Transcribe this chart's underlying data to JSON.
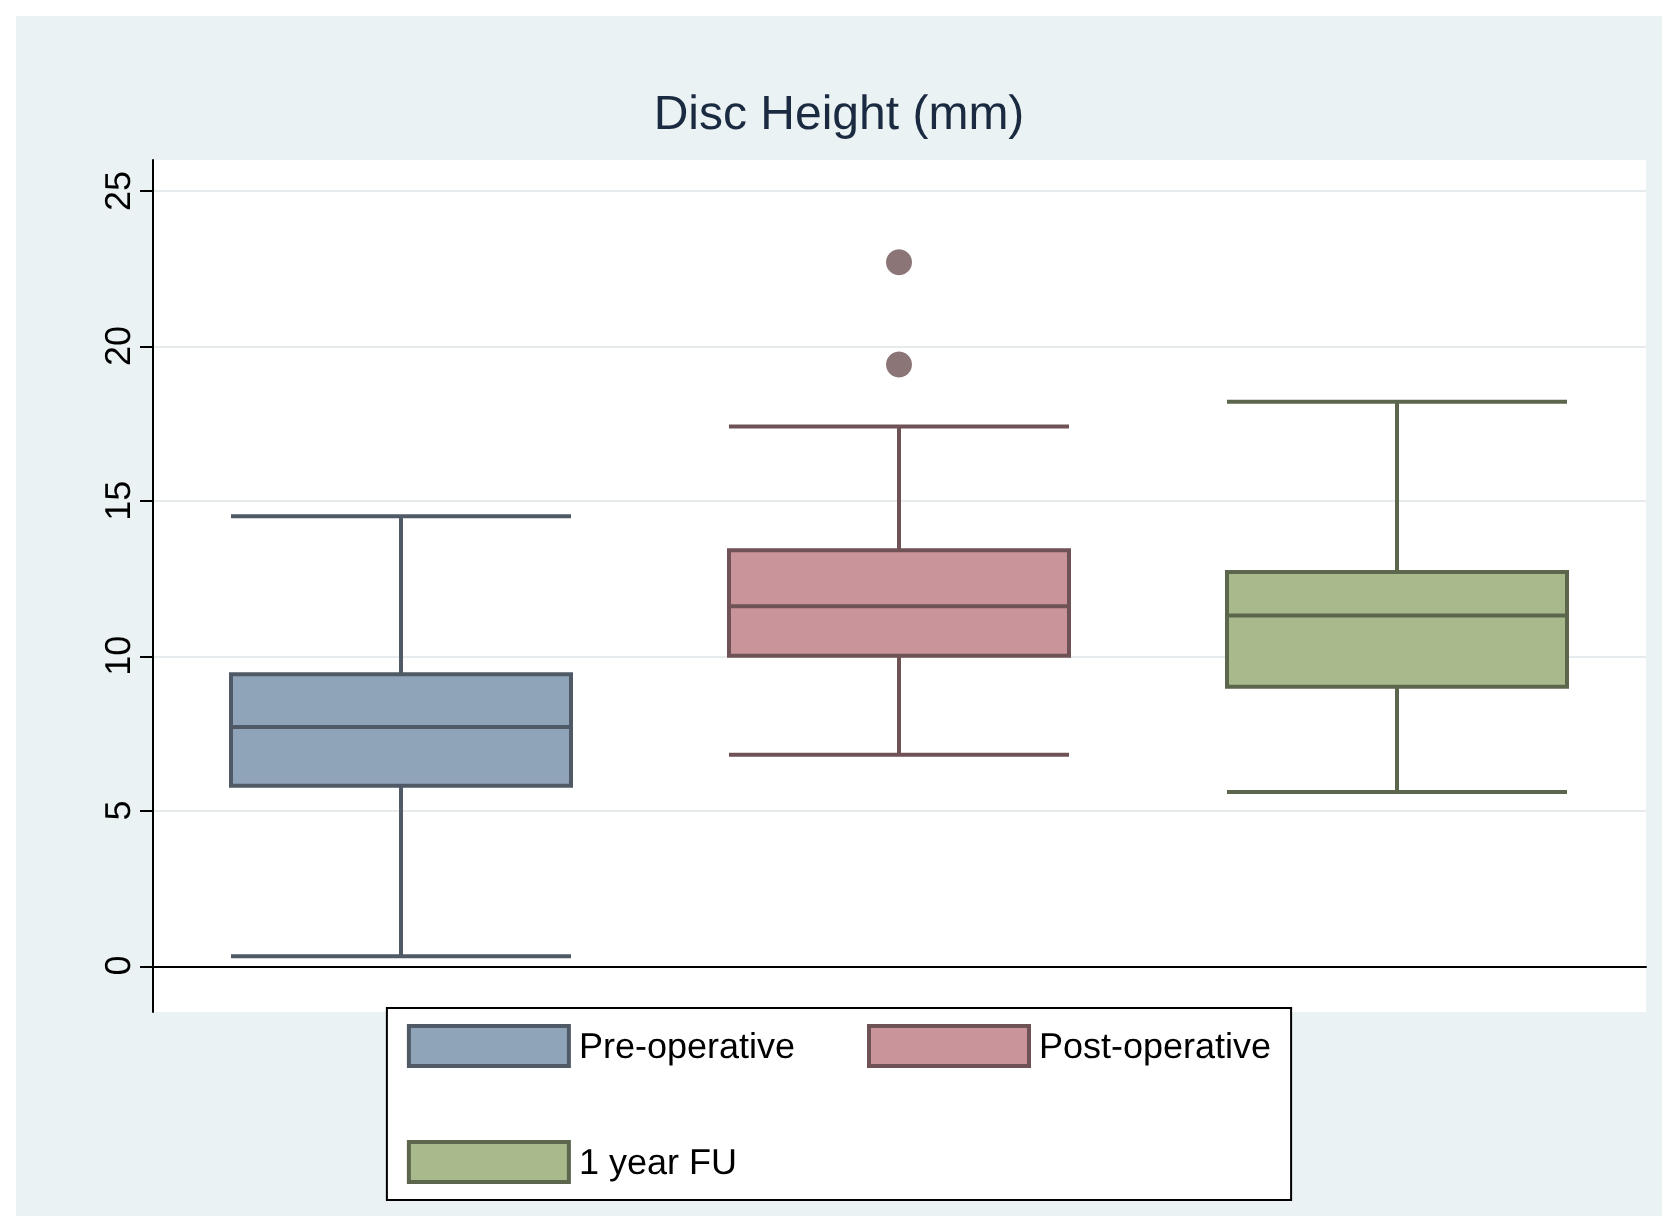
{
  "chart_data": {
    "type": "box",
    "title": "Disc Height (mm)",
    "categories": [
      null,
      null,
      null
    ],
    "ylim": [
      -1.5,
      26
    ],
    "yticks": [
      0,
      5,
      10,
      15,
      20,
      25
    ],
    "grid": "y",
    "legend": "bottom",
    "series": [
      {
        "name": "Pre-operative",
        "color": "#90a4b9",
        "boxes": [
          {
            "low": 0.3,
            "q1": 5.8,
            "median": 7.7,
            "q3": 9.4,
            "high": 14.5
          },
          null,
          null
        ]
      },
      {
        "name": "Post-operative",
        "color": "#c9959a",
        "boxes": [
          null,
          {
            "low": 6.8,
            "q1": 10,
            "median": 11.6,
            "q3": 13.4,
            "high": 17.4,
            "outliers": [
              19.4,
              22.7
            ]
          },
          null
        ]
      },
      {
        "name": "1 year FU",
        "color": "#a8ba8c",
        "boxes": [
          null,
          null,
          {
            "low": 5.6,
            "q1": 9,
            "median": 11.3,
            "q3": 12.7,
            "high": 18.2
          }
        ]
      }
    ]
  }
}
